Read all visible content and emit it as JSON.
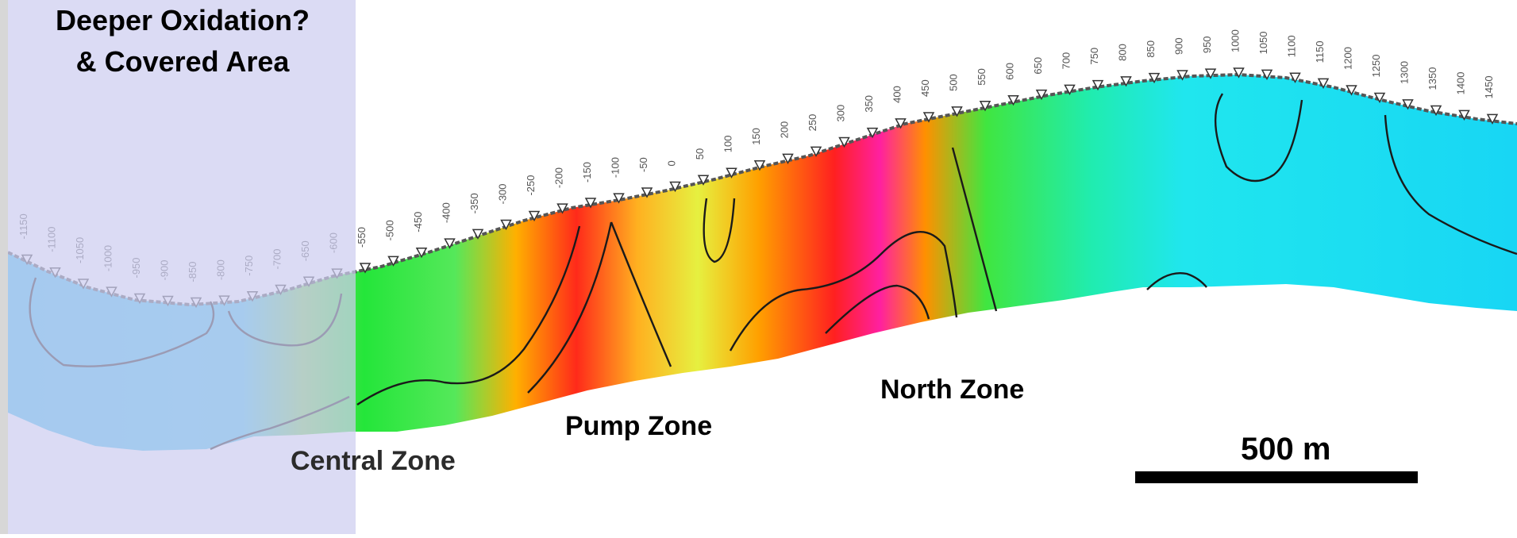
{
  "title": {
    "line1": "Deeper Oxidation?",
    "line2": "& Covered Area"
  },
  "zones": {
    "central": "Central Zone",
    "pump": "Pump Zone",
    "north": "North Zone"
  },
  "scale_bar": {
    "label": "500 m",
    "length_m": 500
  },
  "colors": {
    "shaded_region": "#cdcdf0",
    "low": "#2fd0f0",
    "mid": "#33e633",
    "high": "#ff2020",
    "highest": "#ff20a0",
    "contour": "#1a1a1a"
  },
  "station_labels": [
    "-1150",
    "-1100",
    "-1050",
    "-1000",
    "-950",
    "-900",
    "-850",
    "-800",
    "-750",
    "-700",
    "-650",
    "-600",
    "-550",
    "-500",
    "-450",
    "-400",
    "-350",
    "-300",
    "-250",
    "-200",
    "-150",
    "-100",
    "-50",
    "0",
    "50",
    "100",
    "150",
    "200",
    "250",
    "300",
    "350",
    "400",
    "450",
    "500",
    "550",
    "600",
    "650",
    "700",
    "750",
    "800",
    "850",
    "900",
    "950",
    "1000",
    "1050",
    "1100",
    "1150",
    "1200",
    "1250",
    "1300",
    "1350",
    "1400",
    "1450"
  ]
}
